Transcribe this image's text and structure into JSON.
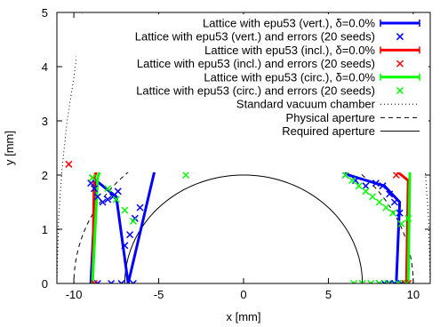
{
  "chart_data": {
    "type": "line",
    "xlabel": "x [mm]",
    "ylabel": "y [mm]",
    "xlim": [
      -11,
      11
    ],
    "ylim": [
      0,
      5
    ],
    "xticks": [
      "-10",
      "-5",
      "0",
      "5",
      "10"
    ],
    "yticks": [
      "0",
      "1",
      "2",
      "3",
      "4",
      "5"
    ],
    "grid": false,
    "legend_position": "top-right",
    "series": [
      {
        "name": "Lattice with epu53 (vert.), δ=0.0%",
        "kind": "line",
        "color": "#0000ff",
        "x": [
          -9.0,
          -8.7,
          -7.5,
          -6.8,
          -4.4,
          -2.8,
          -1.2,
          0.2,
          1.8,
          3.4,
          4.6,
          6.2,
          8.3,
          9.2,
          9.0
        ],
        "y": [
          0,
          1.9,
          1.6,
          0,
          3.2,
          3.2,
          2.95,
          3.05,
          3.0,
          2.95,
          2.5,
          2.0,
          1.8,
          1.5,
          0
        ]
      },
      {
        "name": "Lattice with epu53 (vert.) and errors (20 seeds)",
        "kind": "scatter",
        "color": "#0000ff",
        "x": [
          -9.0,
          -8.8,
          -8.6,
          -8.3,
          -8.0,
          -7.7,
          -7.4,
          -7.0,
          -6.7,
          -6.4,
          -6.1,
          -8.6,
          -7.8,
          -7.2,
          -6.5,
          -5.5,
          -5.0,
          -4.5,
          -4.3,
          -4.0,
          -3.7,
          -3.3,
          -2.9,
          -2.5,
          -2.2,
          -1.5,
          -0.9,
          -0.3,
          0.2,
          0.9,
          1.3,
          1.9,
          2.4,
          2.9,
          3.5,
          4.0,
          4.6,
          5.4,
          6.0,
          6.6,
          7.2,
          7.8,
          8.2,
          8.6,
          8.9,
          9.2,
          8.0,
          8.3,
          8.6,
          8.9,
          9.1,
          9.3
        ],
        "y": [
          1.85,
          1.75,
          1.6,
          1.5,
          1.55,
          1.6,
          1.7,
          0.7,
          0.9,
          1.2,
          1.4,
          0,
          0,
          0,
          0,
          2.2,
          2.35,
          2.6,
          2.7,
          3.05,
          3.0,
          3.05,
          3.2,
          3.15,
          2.7,
          2.5,
          2.3,
          2.35,
          2.4,
          2.45,
          2.2,
          2.25,
          2.2,
          2.2,
          2.3,
          2.55,
          2.6,
          2.7,
          2.0,
          1.9,
          1.8,
          1.85,
          1.8,
          1.65,
          1.5,
          1.3,
          0,
          0,
          0,
          0,
          0,
          0
        ]
      },
      {
        "name": "Lattice with epu53 (incl.), δ=0.0%",
        "kind": "line",
        "color": "#ff0000",
        "x": [
          -8.9,
          -8.8,
          -7.1,
          -4.4,
          -2.8,
          -1.2,
          0.3,
          1.8,
          3.5,
          5.4,
          8.1,
          9.7,
          9.6
        ],
        "y": [
          0,
          1.95,
          3.45,
          3.25,
          3.2,
          3.15,
          3.2,
          3.25,
          3.3,
          3.2,
          2.3,
          1.9,
          0
        ]
      },
      {
        "name": "Lattice with epu53 (incl.) and errors (20 seeds)",
        "kind": "scatter",
        "color": "#ff0000",
        "x": [
          -10.3,
          -8.9,
          -8.8,
          -7.3,
          -7.0,
          -6.8,
          -6.4,
          -6.1,
          -5.6,
          -5.2,
          -4.7,
          -3.8,
          -3.4,
          -3.2,
          -2.9,
          -2.6,
          -1.8,
          -1.1,
          -0.4,
          0.2,
          0.7,
          1.1,
          1.7,
          2.3,
          2.8,
          3.2,
          4.0,
          4.5,
          5.0,
          5.3,
          5.9,
          6.7,
          7.5,
          8.4,
          9.0,
          9.7,
          9.8,
          10.0,
          9.5,
          9.6,
          9.7
        ],
        "y": [
          2.2,
          1.95,
          0,
          3.45,
          3.3,
          3.15,
          3.0,
          2.85,
          2.7,
          2.6,
          2.5,
          2.65,
          2.4,
          2.3,
          2.45,
          2.3,
          2.55,
          2.35,
          2.3,
          2.35,
          2.4,
          2.3,
          2.4,
          2.5,
          2.65,
          2.5,
          2.7,
          3.1,
          3.0,
          3.2,
          3.1,
          3.05,
          2.9,
          2.35,
          2.0,
          2.2,
          2.3,
          2.35,
          0,
          0,
          0
        ]
      },
      {
        "name": "Lattice with epu53 (circ.), δ=0.0%",
        "kind": "line",
        "color": "#00ff00",
        "x": [
          -8.9,
          -8.6,
          -7.1,
          -4.7,
          -4.5,
          -2.9,
          -1.6,
          0.0,
          1.8,
          3.2,
          4.5,
          5.8,
          8.3,
          9.8,
          9.7
        ],
        "y": [
          0,
          1.95,
          3.35,
          3.2,
          3.15,
          3.15,
          3.1,
          3.0,
          3.05,
          3.1,
          3.2,
          3.3,
          2.9,
          2.05,
          0
        ]
      },
      {
        "name": "Lattice with epu53 (circ.) and errors (20 seeds)",
        "kind": "scatter",
        "color": "#00ff00",
        "x": [
          -8.9,
          -8.7,
          -8.5,
          -8.3,
          -8.1,
          -7.9,
          -7.7,
          -7.5,
          -7.3,
          -7.0,
          -6.6,
          -6.2,
          -5.9,
          -5.6,
          -5.3,
          -5.0,
          -4.7,
          -4.5,
          -4.3,
          -4.0,
          -3.7,
          -3.4,
          -3.1,
          -2.8,
          -2.4,
          -2.0,
          -1.6,
          -1.2,
          -0.8,
          -0.4,
          0.0,
          0.4,
          0.8,
          1.2,
          1.6,
          2.0,
          2.4,
          2.8,
          3.2,
          3.6,
          4.0,
          4.4,
          4.8,
          5.2,
          5.6,
          6.0,
          6.4,
          6.8,
          7.2,
          7.6,
          8.0,
          8.4,
          8.8,
          9.3,
          9.7,
          -8.0,
          -7.5,
          -7.0,
          -6.5,
          6.5,
          7.0,
          7.5,
          8.0,
          8.5,
          9.1,
          9.6
        ],
        "y": [
          1.95,
          2.1,
          2.3,
          2.5,
          2.7,
          2.9,
          3.1,
          3.3,
          3.4,
          3.3,
          3.2,
          3.15,
          3.1,
          3.05,
          3.0,
          3.0,
          3.05,
          3.1,
          2.85,
          2.6,
          2.2,
          2.0,
          3.15,
          3.1,
          3.05,
          3.0,
          2.95,
          3.0,
          3.05,
          3.0,
          2.95,
          2.9,
          2.95,
          3.0,
          3.05,
          3.1,
          3.05,
          3.0,
          2.95,
          3.0,
          3.05,
          3.1,
          3.15,
          3.2,
          3.1,
          2.0,
          1.9,
          1.8,
          1.7,
          1.6,
          1.5,
          1.4,
          1.3,
          1.1,
          1.2,
          1.75,
          1.55,
          1.35,
          1.15,
          0,
          0,
          0,
          0,
          0,
          0,
          0
        ]
      },
      {
        "name": "Standard vacuum chamber",
        "kind": "curve",
        "color": "#000000",
        "dash": "dotted",
        "x": [
          -11.0,
          -10.9,
          -10.7,
          -10.4,
          -10.0,
          -9.5,
          9.5,
          10.0,
          10.4,
          10.7,
          10.9,
          11.0
        ],
        "y": [
          0,
          1.2,
          2.1,
          3.0,
          3.8,
          5.0,
          5.0,
          3.8,
          3.0,
          2.1,
          1.2,
          0
        ]
      },
      {
        "name": "Physical aperture",
        "kind": "ellipse",
        "color": "#000000",
        "dash": "dashed",
        "rx": 10.0,
        "ry": 2.8
      },
      {
        "name": "Required aperture",
        "kind": "ellipse",
        "color": "#000000",
        "dash": "solid",
        "rx": 7.0,
        "ry": 2.0
      }
    ]
  }
}
